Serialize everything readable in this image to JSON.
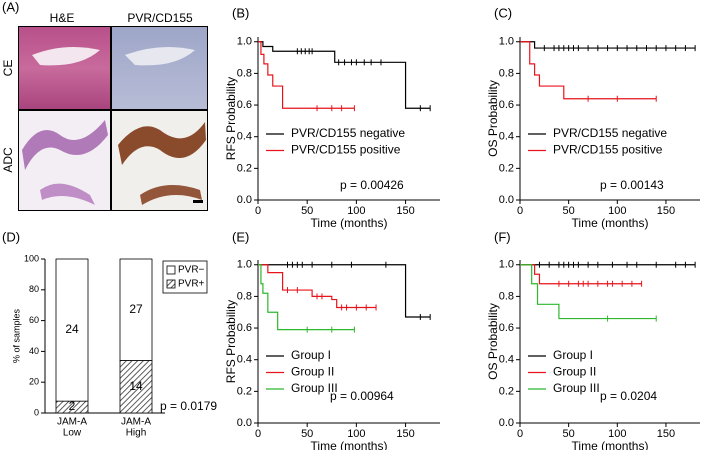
{
  "panel_a": {
    "label": "(A)",
    "columns": [
      "H&E",
      "PVR/CD155"
    ],
    "rows": [
      "CE",
      "ADC"
    ]
  },
  "chart_data": [
    {
      "type": "km",
      "panel": "(B)",
      "ylabel": "RFS Probability",
      "xlabel": "Time (months)",
      "xlim": [
        0,
        185
      ],
      "ylim": [
        0,
        1.03
      ],
      "xticks": [
        0,
        50,
        100,
        150
      ],
      "yticks": [
        {
          "value": 0,
          "label": "0.0"
        },
        {
          "value": 0.2,
          "label": "0.2"
        },
        {
          "value": 0.4,
          "label": "0.4"
        },
        {
          "value": 0.6,
          "label": "0.6"
        },
        {
          "value": 0.8,
          "label": "0.8"
        },
        {
          "value": 1,
          "label": "1.0"
        }
      ],
      "series": [
        {
          "name": "PVR/CD155 negative",
          "color": "#000000",
          "x": [
            0,
            5,
            15,
            78,
            150,
            175
          ],
          "values": [
            1.0,
            0.97,
            0.94,
            0.87,
            0.58,
            0.58
          ],
          "censored": [
            40,
            44,
            48,
            52,
            55,
            82,
            88,
            95,
            100,
            108,
            115,
            125,
            165,
            175
          ]
        },
        {
          "name": "PVR/CD155 positive",
          "color": "#e8141b",
          "x": [
            0,
            3,
            6,
            10,
            15,
            25,
            98
          ],
          "values": [
            1.0,
            0.92,
            0.86,
            0.79,
            0.72,
            0.58,
            0.58
          ],
          "censored": [
            60,
            75,
            85,
            98
          ]
        }
      ],
      "annotation": "p = 0.00426"
    },
    {
      "type": "km",
      "panel": "(C)",
      "ylabel": "OS Probability",
      "xlabel": "Time (months)",
      "xlim": [
        0,
        185
      ],
      "ylim": [
        0,
        1.03
      ],
      "xticks": [
        0,
        50,
        100,
        150
      ],
      "yticks": [
        {
          "value": 0,
          "label": "0.0"
        },
        {
          "value": 0.2,
          "label": "0.2"
        },
        {
          "value": 0.4,
          "label": "0.4"
        },
        {
          "value": 0.6,
          "label": "0.6"
        },
        {
          "value": 0.8,
          "label": "0.8"
        },
        {
          "value": 1,
          "label": "1.0"
        }
      ],
      "series": [
        {
          "name": "PVR/CD155 negative",
          "color": "#000000",
          "x": [
            0,
            15,
            180
          ],
          "values": [
            1.0,
            0.96,
            0.96
          ],
          "censored": [
            25,
            35,
            40,
            45,
            50,
            55,
            60,
            70,
            80,
            90,
            100,
            110,
            120,
            130,
            140,
            150,
            160,
            170,
            180
          ]
        },
        {
          "name": "PVR/CD155 positive",
          "color": "#e8141b",
          "x": [
            0,
            10,
            15,
            20,
            45,
            140
          ],
          "values": [
            1.0,
            0.86,
            0.79,
            0.72,
            0.64,
            0.64
          ],
          "censored": [
            70,
            100,
            140
          ]
        }
      ],
      "annotation": "p = 0.00143"
    },
    {
      "type": "stacked_bar",
      "panel": "(D)",
      "ylabel": "% of samples",
      "categories": [
        [
          "JAM-A",
          "Low"
        ],
        [
          "JAM-A",
          "High"
        ]
      ],
      "ylim": [
        0,
        100
      ],
      "yticks": [
        0,
        20,
        40,
        60,
        80,
        100
      ],
      "series": [
        {
          "name": "PVR+",
          "pattern": "hatch",
          "values": [
            7.7,
            34.1
          ],
          "counts": [
            2,
            14
          ]
        },
        {
          "name": "PVR−",
          "pattern": "none",
          "values": [
            92.3,
            65.9
          ],
          "counts": [
            24,
            27
          ]
        }
      ],
      "annotation": "p = 0.0179"
    },
    {
      "type": "km",
      "panel": "(E)",
      "ylabel": "RFS Probability",
      "xlabel": "Time (months)",
      "xlim": [
        0,
        185
      ],
      "ylim": [
        0,
        1.03
      ],
      "xticks": [
        0,
        50,
        100,
        150
      ],
      "yticks": [
        {
          "value": 0,
          "label": "0.0"
        },
        {
          "value": 0.2,
          "label": "0.2"
        },
        {
          "value": 0.4,
          "label": "0.4"
        },
        {
          "value": 0.6,
          "label": "0.6"
        },
        {
          "value": 0.8,
          "label": "0.8"
        },
        {
          "value": 1,
          "label": "1.0"
        }
      ],
      "series": [
        {
          "name": "Group I",
          "color": "#000000",
          "x": [
            0,
            150,
            175
          ],
          "values": [
            1.0,
            0.67,
            0.67
          ],
          "censored": [
            30,
            35,
            40,
            45,
            55,
            75,
            95,
            130,
            165,
            175
          ]
        },
        {
          "name": "Group II",
          "color": "#e8141b",
          "x": [
            0,
            10,
            25,
            55,
            75,
            80,
            120
          ],
          "values": [
            1.0,
            0.95,
            0.84,
            0.8,
            0.78,
            0.73,
            0.73
          ],
          "censored": [
            30,
            40,
            60,
            65,
            85,
            90,
            100,
            110,
            120
          ]
        },
        {
          "name": "Group III",
          "color": "#2db82d",
          "x": [
            0,
            3,
            5,
            10,
            20,
            98
          ],
          "values": [
            1.0,
            0.88,
            0.82,
            0.7,
            0.59,
            0.59
          ],
          "censored": [
            50,
            75,
            98
          ]
        }
      ],
      "annotation": "p = 0.00964"
    },
    {
      "type": "km",
      "panel": "(F)",
      "ylabel": "OS Probability",
      "xlabel": "Time (months)",
      "xlim": [
        0,
        185
      ],
      "ylim": [
        0,
        1.03
      ],
      "xticks": [
        0,
        50,
        100,
        150
      ],
      "yticks": [
        {
          "value": 0,
          "label": "0.0"
        },
        {
          "value": 0.2,
          "label": "0.2"
        },
        {
          "value": 0.4,
          "label": "0.4"
        },
        {
          "value": 0.6,
          "label": "0.6"
        },
        {
          "value": 0.8,
          "label": "0.8"
        },
        {
          "value": 1,
          "label": "1.0"
        }
      ],
      "series": [
        {
          "name": "Group I",
          "color": "#000000",
          "x": [
            0,
            180
          ],
          "values": [
            1.0,
            1.0
          ],
          "censored": [
            20,
            30,
            40,
            45,
            50,
            55,
            60,
            70,
            80,
            95,
            110,
            120,
            140,
            160,
            170,
            180
          ]
        },
        {
          "name": "Group II",
          "color": "#e8141b",
          "x": [
            0,
            15,
            20,
            125
          ],
          "values": [
            1.0,
            0.94,
            0.88,
            0.88
          ],
          "censored": [
            40,
            50,
            60,
            65,
            70,
            80,
            90,
            95,
            105,
            115,
            125
          ]
        },
        {
          "name": "Group III",
          "color": "#2db82d",
          "x": [
            0,
            12,
            18,
            40,
            140
          ],
          "values": [
            1.0,
            0.88,
            0.75,
            0.66,
            0.66
          ],
          "censored": [
            90,
            140
          ]
        }
      ],
      "annotation": "p = 0.0204"
    }
  ]
}
